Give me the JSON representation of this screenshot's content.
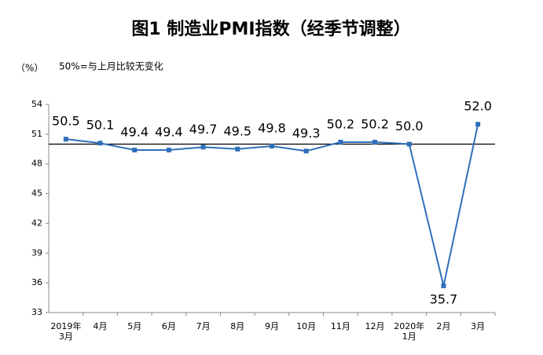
{
  "chart_data": {
    "type": "line",
    "title": "图1 制造业PMI指数（经季节调整）",
    "y_unit": "（%）",
    "annotation": "50%=与上月比较无变化",
    "categories": [
      "2019年\n3月",
      "4月",
      "5月",
      "6月",
      "7月",
      "8月",
      "9月",
      "10月",
      "11月",
      "12月",
      "2020年\n1月",
      "2月",
      "3月"
    ],
    "series": [
      {
        "name": "制造业PMI",
        "color": "#2f6fba",
        "values": [
          50.5,
          50.1,
          49.4,
          49.4,
          49.7,
          49.5,
          49.8,
          49.3,
          50.2,
          50.2,
          50.0,
          35.7,
          52.0
        ],
        "value_labels": [
          "50.5",
          "50.1",
          "49.4",
          "49.4",
          "49.7",
          "49.5",
          "49.8",
          "49.3",
          "50.2",
          "50.2",
          "50.0",
          "35.7",
          "52.0"
        ]
      }
    ],
    "reference_line": 50,
    "ylim": [
      33,
      54
    ],
    "yticks": [
      33,
      36,
      39,
      42,
      45,
      48,
      51,
      54
    ],
    "grid": false
  }
}
